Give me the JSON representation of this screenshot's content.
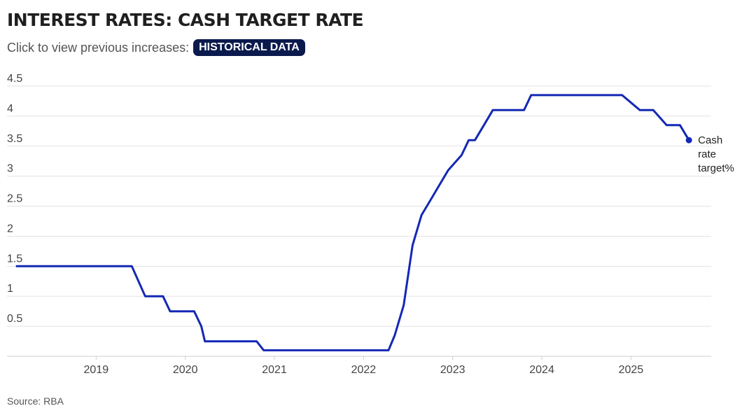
{
  "header": {
    "title": "INTEREST RATES: CASH TARGET RATE",
    "subtitle": "Click to view previous increases:",
    "button_label": "HISTORICAL DATA"
  },
  "footer": {
    "source": "Source: RBA"
  },
  "colors": {
    "line": "#1428b4",
    "button_bg": "#0b1a4d",
    "grid": "#e3e3e3"
  },
  "chart_data": {
    "type": "line",
    "title": "INTEREST RATES: CASH TARGET RATE",
    "xlabel": "",
    "ylabel": "",
    "xlim": [
      2018.0,
      2025.9
    ],
    "ylim": [
      0,
      4.5
    ],
    "y_ticks": [
      "0.5",
      "1",
      "1.5",
      "2",
      "2.5",
      "3",
      "3.5",
      "4",
      "4.5"
    ],
    "x_ticks": [
      "2019",
      "2020",
      "2021",
      "2022",
      "2023",
      "2024",
      "2025"
    ],
    "grid": true,
    "series": [
      {
        "name": "Cash rate target%",
        "label_lines": [
          "Cash",
          "rate",
          "target%"
        ],
        "x": [
          2018.1,
          2019.4,
          2019.55,
          2019.75,
          2019.83,
          2020.1,
          2020.18,
          2020.22,
          2020.8,
          2020.88,
          2022.28,
          2022.35,
          2022.45,
          2022.55,
          2022.65,
          2022.75,
          2022.85,
          2022.95,
          2023.1,
          2023.18,
          2023.25,
          2023.35,
          2023.45,
          2023.8,
          2023.88,
          2024.9,
          2025.1,
          2025.25,
          2025.4,
          2025.55,
          2025.65
        ],
        "y": [
          1.5,
          1.5,
          1.0,
          1.0,
          0.75,
          0.75,
          0.5,
          0.25,
          0.25,
          0.1,
          0.1,
          0.35,
          0.85,
          1.85,
          2.35,
          2.6,
          2.85,
          3.1,
          3.35,
          3.6,
          3.6,
          3.85,
          4.1,
          4.1,
          4.35,
          4.35,
          4.1,
          4.1,
          3.85,
          3.85,
          3.6
        ]
      }
    ]
  }
}
